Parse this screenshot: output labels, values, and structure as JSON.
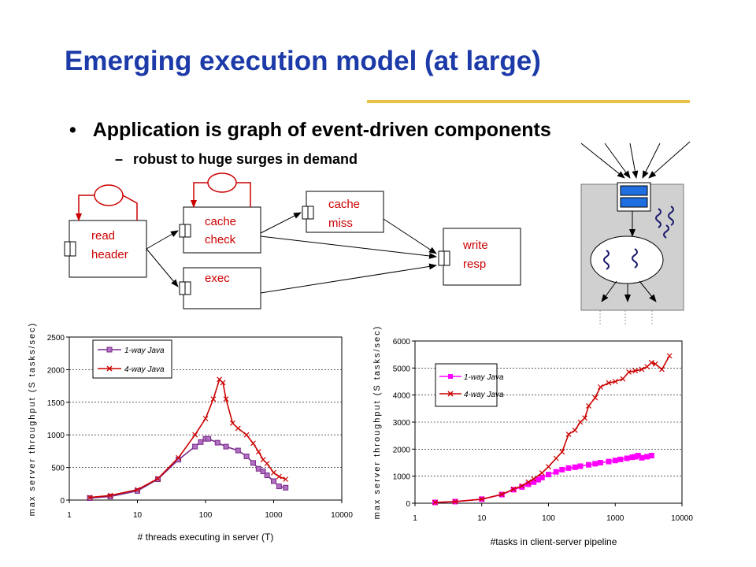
{
  "slide": {
    "title": "Emerging execution model (at large)",
    "bullet": "Application is graph of event-driven components",
    "bullet_marker": "•",
    "sub_bullet": "robust to huge surges in demand",
    "sub_marker": "–"
  },
  "colors": {
    "title": "#1c3aa8",
    "rule": "#e8c34a",
    "diagram_text": "#cc0000",
    "arrow": "#000000",
    "loop": "#cc0000"
  },
  "diagram": {
    "nodes": [
      {
        "id": "read-header",
        "lines": [
          "read",
          "header"
        ]
      },
      {
        "id": "cache-check",
        "lines": [
          "cache",
          "check"
        ]
      },
      {
        "id": "exec",
        "lines": [
          "exec"
        ]
      },
      {
        "id": "cache-miss",
        "lines": [
          "cache",
          "miss"
        ]
      },
      {
        "id": "write-resp",
        "lines": [
          "write",
          "resp"
        ]
      }
    ]
  },
  "chart_data": [
    {
      "type": "line",
      "x_scale": "log",
      "xlim": [
        1,
        10000
      ],
      "ylim": [
        0,
        2500
      ],
      "x_ticks": [
        "1",
        "10",
        "100",
        "1000",
        "10000"
      ],
      "y_ticks": [
        "0",
        "500",
        "1000",
        "1500",
        "2000",
        "2500"
      ],
      "xlabel": "# threads executing in server (T)",
      "ylabel": "max server throughput (S tasks/sec)",
      "legend_position": "top-left",
      "series": [
        {
          "name": "1-way Java",
          "marker": "square",
          "color": "#7a2a8a",
          "x": [
            2,
            4,
            10,
            20,
            40,
            70,
            85,
            100,
            110,
            150,
            200,
            300,
            400,
            500,
            600,
            700,
            800,
            1000,
            1200,
            1500
          ],
          "y": [
            30,
            55,
            140,
            320,
            620,
            820,
            890,
            940,
            940,
            880,
            820,
            760,
            670,
            570,
            480,
            440,
            380,
            290,
            210,
            190
          ]
        },
        {
          "name": "4-way Java",
          "marker": "x",
          "color": "#cc0000",
          "x": [
            2,
            4,
            10,
            20,
            40,
            70,
            100,
            130,
            160,
            180,
            200,
            250,
            300,
            400,
            500,
            600,
            700,
            800,
            1000,
            1200,
            1500
          ],
          "y": [
            40,
            70,
            160,
            330,
            650,
            1000,
            1250,
            1550,
            1850,
            1800,
            1550,
            1180,
            1100,
            1000,
            870,
            740,
            620,
            560,
            420,
            360,
            320
          ]
        }
      ]
    },
    {
      "type": "line",
      "x_scale": "log",
      "xlim": [
        1,
        10000
      ],
      "ylim": [
        0,
        6000
      ],
      "x_ticks": [
        "1",
        "10",
        "100",
        "1000",
        "10000"
      ],
      "y_ticks": [
        "0",
        "1000",
        "2000",
        "3000",
        "4000",
        "5000",
        "6000"
      ],
      "xlabel": "#tasks in client-server pipeline",
      "ylabel": "max server throughput (S tasks/sec)",
      "legend_position": "top-left",
      "series": [
        {
          "name": "1-way Java",
          "marker": "square",
          "color": "#ff00ff",
          "x": [
            2,
            4,
            10,
            20,
            30,
            40,
            50,
            60,
            70,
            80,
            100,
            130,
            160,
            200,
            250,
            300,
            400,
            500,
            600,
            800,
            1000,
            1200,
            1500,
            1800,
            2000,
            2200,
            2500,
            3000,
            3500
          ],
          "y": [
            30,
            60,
            150,
            320,
            500,
            600,
            700,
            780,
            870,
            950,
            1060,
            1160,
            1240,
            1300,
            1330,
            1370,
            1420,
            1460,
            1500,
            1540,
            1580,
            1620,
            1660,
            1700,
            1720,
            1760,
            1680,
            1720,
            1760
          ]
        },
        {
          "name": "4-way Java",
          "marker": "x",
          "color": "#cc0000",
          "x": [
            2,
            4,
            10,
            20,
            30,
            40,
            50,
            60,
            80,
            100,
            130,
            160,
            200,
            250,
            300,
            350,
            400,
            500,
            600,
            800,
            1000,
            1300,
            1600,
            2000,
            2500,
            3000,
            3500,
            4000,
            5000,
            6500
          ],
          "y": [
            30,
            60,
            150,
            330,
            520,
            640,
            780,
            900,
            1120,
            1350,
            1660,
            1900,
            2550,
            2700,
            3000,
            3150,
            3600,
            3900,
            4300,
            4450,
            4500,
            4600,
            4850,
            4900,
            4950,
            5050,
            5200,
            5150,
            4950,
            5450
          ]
        }
      ]
    }
  ]
}
